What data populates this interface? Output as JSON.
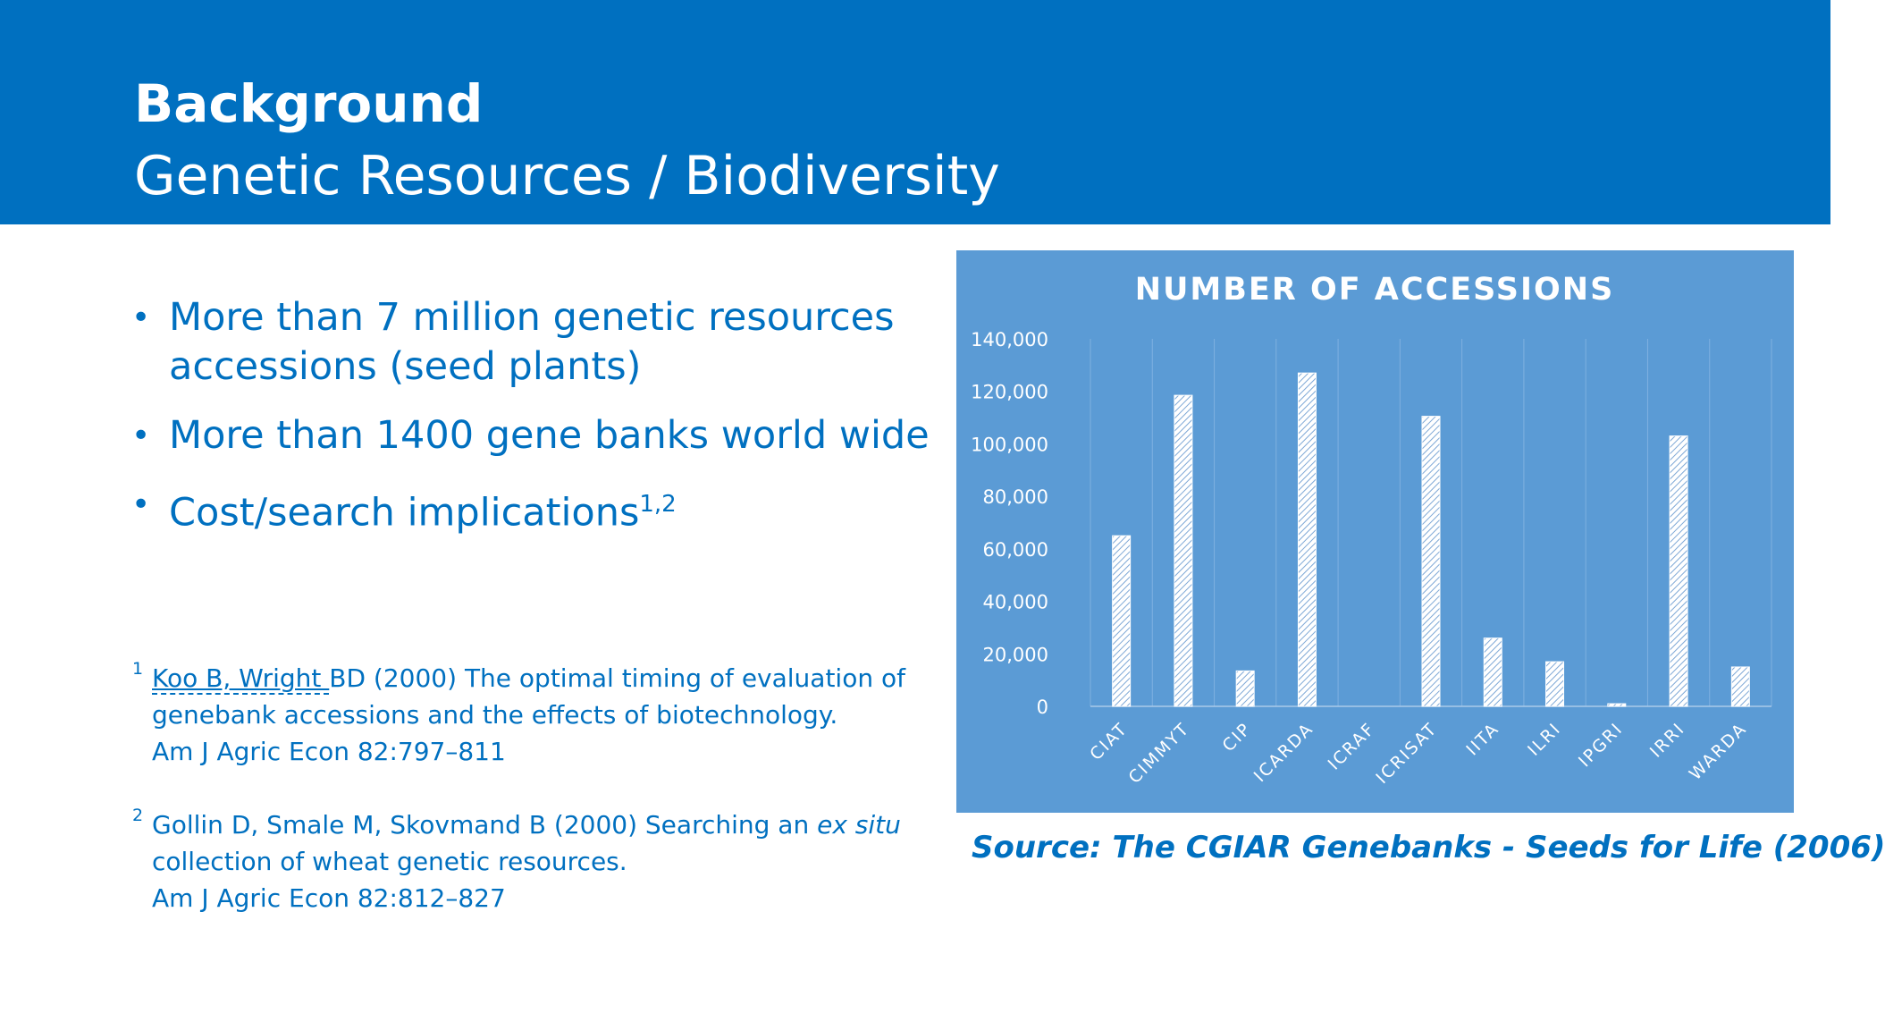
{
  "header": {
    "title": "Background",
    "subtitle": "Genetic Resources / Biodiversity"
  },
  "bullets": [
    {
      "text": "More than 7 million genetic resources accessions (seed plants)",
      "sup": ""
    },
    {
      "text": "More than 1400 gene banks world wide",
      "sup": ""
    },
    {
      "text": "Cost/search implications",
      "sup": "1,2"
    }
  ],
  "footnotes": [
    {
      "num": "1",
      "link": "Koo B, Wright ",
      "line1_rest": "BD (2000) The optimal timing of evaluation of",
      "line2": "genebank accessions and the effects of biotechnology.",
      "line3": "Am J Agric Econ 82:797–811"
    },
    {
      "num": "2",
      "line1_pre": "Gollin D, Smale M, Skovmand B (2000) Searching an ",
      "line1_em": "ex situ",
      "line2": "collection of wheat genetic resources.",
      "line3": "Am J Agric Econ 82:812–827"
    }
  ],
  "source": "Source: The CGIAR Genebanks - Seeds for Life (2006)",
  "colors": {
    "header_bg": "#0070c0",
    "chart_bg": "#5b9bd5",
    "text_blue": "#0070c0"
  },
  "chart_data": {
    "type": "bar",
    "title": "NUMBER OF ACCESSIONS",
    "categories": [
      "CIAT",
      "CIMMYT",
      "CIP",
      "ICARDA",
      "ICRAF",
      "ICRISAT",
      "IITA",
      "ILRI",
      "IPGRI",
      "IRRI",
      "WARDA"
    ],
    "values": [
      65000,
      118500,
      13500,
      127000,
      0,
      110500,
      26000,
      17000,
      1000,
      103000,
      15000
    ],
    "yticks": [
      "0",
      "20,000",
      "40,000",
      "60,000",
      "80,000",
      "100,000",
      "120,000",
      "140,000"
    ],
    "ylim": [
      0,
      140000
    ],
    "grid": "vertical category dividers",
    "bar_fill": "hatched white"
  }
}
